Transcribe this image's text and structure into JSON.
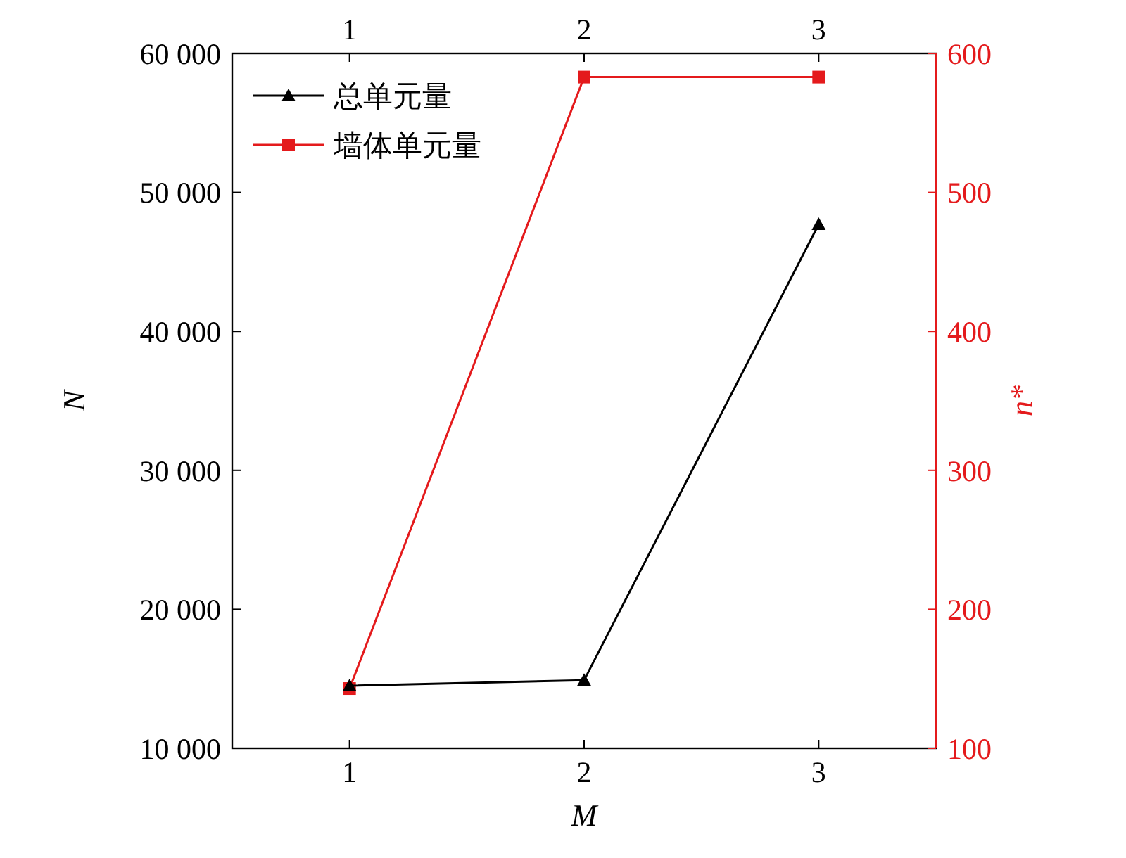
{
  "chart_data": {
    "type": "line",
    "xlabel": "M",
    "ylabel": "N",
    "y2label": "n*",
    "x": [
      1,
      2,
      3
    ],
    "xlim": [
      0.5,
      3.5
    ],
    "xticks": [
      1,
      2,
      3
    ],
    "x2lim": [
      0.5,
      3.5
    ],
    "x2ticks": [
      1,
      2,
      3
    ],
    "ylim": [
      10000,
      60000
    ],
    "yticks": [
      {
        "value": 10000,
        "label": "10 000"
      },
      {
        "value": 20000,
        "label": "20 000"
      },
      {
        "value": 30000,
        "label": "30 000"
      },
      {
        "value": 40000,
        "label": "40 000"
      },
      {
        "value": 50000,
        "label": "50 000"
      },
      {
        "value": 60000,
        "label": "60 000"
      }
    ],
    "y2lim": [
      100,
      600
    ],
    "y2ticks": [
      100,
      200,
      300,
      400,
      500,
      600
    ],
    "series": [
      {
        "name": "总单元量",
        "color": "#000000",
        "values": [
          14500,
          14900,
          47700
        ],
        "marker": "triangle"
      },
      {
        "name": "墙体单元量",
        "color": "#e41a1c",
        "values": [
          143,
          583,
          583
        ],
        "axis": "y2",
        "marker": "square"
      }
    ],
    "legend": "top left",
    "grid": false,
    "line_style": "solid"
  }
}
